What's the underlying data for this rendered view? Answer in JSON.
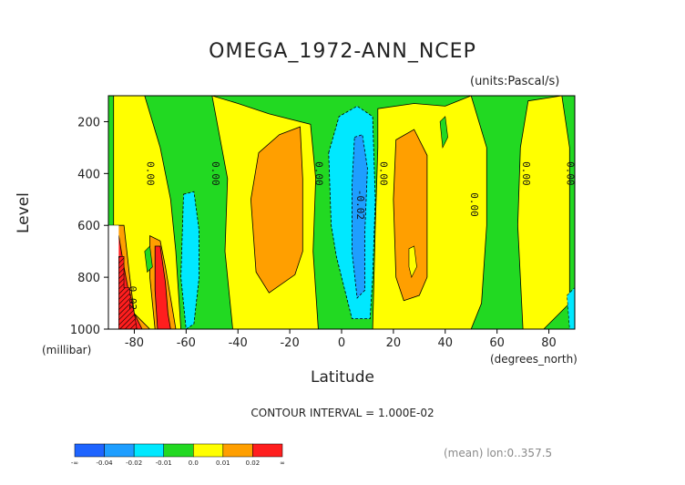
{
  "chart_data": {
    "type": "heatmap",
    "title": "OMEGA_1972-ANN_NCEP",
    "units": "(units:Pascal/s)",
    "xlabel": "Latitude",
    "x_units": "(degrees_north)",
    "ylabel": "Level",
    "y_units": "(millibar)",
    "xlim": [
      -90,
      90
    ],
    "ylim": [
      1000,
      100
    ],
    "x_ticks": [
      "-80",
      "-60",
      "-40",
      "-20",
      "0",
      "20",
      "40",
      "60",
      "80"
    ],
    "x_tick_values": [
      -80,
      -60,
      -40,
      -20,
      0,
      20,
      40,
      60,
      80
    ],
    "y_ticks": [
      "200",
      "400",
      "600",
      "800",
      "1000"
    ],
    "y_tick_values": [
      200,
      400,
      600,
      800,
      1000
    ],
    "contour_interval_text": "CONTOUR INTERVAL = 1.000E-02",
    "footer_text": "(mean) lon:0..357.5",
    "colorbar": {
      "colors": [
        "#1e64ff",
        "#1e9eff",
        "#00e8ff",
        "#22d922",
        "#ffff00",
        "#ff9f00",
        "#ff1e1e"
      ],
      "labels": [
        "-∞",
        "-0.04",
        "-0.02",
        "-0.01",
        "0.0",
        "0.01",
        "0.02",
        "∞"
      ]
    },
    "levels": [
      -0.04,
      -0.02,
      -0.01,
      0.0,
      0.01,
      0.02
    ],
    "contour_labels": [
      {
        "text": "0.00",
        "x": -75,
        "y": 400
      },
      {
        "text": "0.00",
        "x": -50,
        "y": 400
      },
      {
        "text": "0.00",
        "x": -10,
        "y": 400
      },
      {
        "text": "0.00",
        "x": 15,
        "y": 400
      },
      {
        "text": "-0.02",
        "x": 6,
        "y": 520
      },
      {
        "text": "0.00",
        "x": 50,
        "y": 520
      },
      {
        "text": "0.00",
        "x": 70,
        "y": 400
      },
      {
        "text": "0.00",
        "x": 87,
        "y": 400
      },
      {
        "text": "0.02",
        "x": -82,
        "y": 880
      }
    ],
    "regions": [
      {
        "level": "0.0",
        "color": "#ffff00",
        "points": [
          [
            -88,
            100
          ],
          [
            -76,
            100
          ],
          [
            -70,
            300
          ],
          [
            -66,
            500
          ],
          [
            -64,
            700
          ],
          [
            -62,
            1000
          ],
          [
            -88,
            1000
          ]
        ]
      },
      {
        "level": "0.0",
        "color": "#ffff00",
        "points": [
          [
            -50,
            100
          ],
          [
            -40,
            130
          ],
          [
            -28,
            170
          ],
          [
            -12,
            210
          ],
          [
            -10,
            420
          ],
          [
            -11,
            700
          ],
          [
            -9,
            1000
          ],
          [
            -42,
            1000
          ],
          [
            -45,
            700
          ],
          [
            -44,
            420
          ]
        ]
      },
      {
        "level": "0.0",
        "color": "#ffff00",
        "points": [
          [
            14,
            150
          ],
          [
            28,
            130
          ],
          [
            40,
            140
          ],
          [
            50,
            100
          ],
          [
            56,
            300
          ],
          [
            56,
            600
          ],
          [
            54,
            900
          ],
          [
            50,
            1000
          ],
          [
            12,
            1000
          ],
          [
            13,
            600
          ],
          [
            14,
            300
          ]
        ]
      },
      {
        "level": "0.0",
        "color": "#ffff00",
        "points": [
          [
            72,
            120
          ],
          [
            85,
            100
          ],
          [
            88,
            300
          ],
          [
            88,
            700
          ],
          [
            88,
            900
          ],
          [
            78,
            1000
          ],
          [
            70,
            1000
          ],
          [
            68,
            600
          ],
          [
            69,
            300
          ]
        ]
      },
      {
        "level": "0.01",
        "color": "#ff9f00",
        "points": [
          [
            -32,
            320
          ],
          [
            -24,
            250
          ],
          [
            -16,
            220
          ],
          [
            -15,
            420
          ],
          [
            -15,
            700
          ],
          [
            -18,
            790
          ],
          [
            -28,
            860
          ],
          [
            -33,
            780
          ],
          [
            -35,
            500
          ]
        ]
      },
      {
        "level": "0.01",
        "color": "#ff9f00",
        "points": [
          [
            21,
            270
          ],
          [
            28,
            230
          ],
          [
            33,
            330
          ],
          [
            33,
            600
          ],
          [
            33,
            800
          ],
          [
            30,
            870
          ],
          [
            24,
            890
          ],
          [
            21,
            800
          ],
          [
            20,
            500
          ]
        ]
      },
      {
        "level": "0.01",
        "color": "#ff9f00",
        "points": [
          [
            -90,
            600
          ],
          [
            -84,
            600
          ],
          [
            -82,
            780
          ],
          [
            -80,
            940
          ],
          [
            -74,
            1000
          ],
          [
            -90,
            1000
          ]
        ]
      },
      {
        "level": "0.01",
        "color": "#ff9f00",
        "points": [
          [
            -74,
            640
          ],
          [
            -70,
            660
          ],
          [
            -68,
            760
          ],
          [
            -66,
            880
          ],
          [
            -64,
            1000
          ],
          [
            -72,
            1000
          ],
          [
            -74,
            800
          ]
        ]
      },
      {
        "level": "-0.01",
        "color": "#00e8ff",
        "points": [
          [
            -61,
            480
          ],
          [
            -57,
            470
          ],
          [
            -55,
            620
          ],
          [
            -55,
            800
          ],
          [
            -57,
            980
          ],
          [
            -60,
            1000
          ],
          [
            -62,
            800
          ]
        ]
      },
      {
        "level": "-0.01",
        "color": "#00e8ff",
        "points": [
          [
            -5,
            320
          ],
          [
            -1,
            180
          ],
          [
            6,
            140
          ],
          [
            12,
            180
          ],
          [
            13,
            500
          ],
          [
            12,
            800
          ],
          [
            11,
            960
          ],
          [
            4,
            960
          ],
          [
            2,
            880
          ],
          [
            -2,
            720
          ],
          [
            -4,
            600
          ]
        ]
      },
      {
        "level": "-0.02",
        "color": "#1e9eff",
        "points": [
          [
            5,
            260
          ],
          [
            8,
            250
          ],
          [
            10,
            380
          ],
          [
            9,
            620
          ],
          [
            9,
            850
          ],
          [
            6,
            880
          ],
          [
            4,
            700
          ],
          [
            4,
            450
          ]
        ]
      },
      {
        "level": "0.02",
        "color": "#ff1e1e",
        "points": [
          [
            -90,
            640
          ],
          [
            -86,
            640
          ],
          [
            -84,
            760
          ],
          [
            -81,
            920
          ],
          [
            -77,
            1000
          ],
          [
            -90,
            1000
          ]
        ]
      },
      {
        "level": "0.02",
        "color": "#ff1e1e",
        "points": [
          [
            -72,
            680
          ],
          [
            -70,
            680
          ],
          [
            -68,
            820
          ],
          [
            -67,
            940
          ],
          [
            -66,
            1000
          ],
          [
            -71,
            1000
          ],
          [
            -72,
            850
          ]
        ]
      }
    ]
  }
}
